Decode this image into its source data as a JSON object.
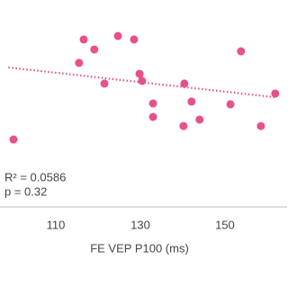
{
  "chart_data": {
    "type": "scatter",
    "x_label": "FE VEP P100 (ms)",
    "annotations": [
      "R² = 0.0586",
      "p = 0.32"
    ],
    "color": "#e8508a",
    "x": [
      100.0,
      116.6,
      119.1,
      115.5,
      121.5,
      124.7,
      128.5,
      129.8,
      130.4,
      133.0,
      133.0,
      140.4,
      142.1,
      144.0,
      140.2,
      151.3,
      153.8,
      158.5,
      161.9
    ],
    "values": [
      32.6,
      80.9,
      76.1,
      69.6,
      59.6,
      82.6,
      80.9,
      64.3,
      60.9,
      50.0,
      43.5,
      59.6,
      50.9,
      42.2,
      39.1,
      49.6,
      75.2,
      39.1,
      54.8
    ],
    "trendline": {
      "x": [
        98.8,
        161.9
      ],
      "values": [
        67.4,
        53.0
      ]
    },
    "xlim": [
      96.8,
      164.7
    ],
    "xticks": [
      110,
      130,
      150
    ],
    "ylim": [
      0,
      100
    ]
  }
}
